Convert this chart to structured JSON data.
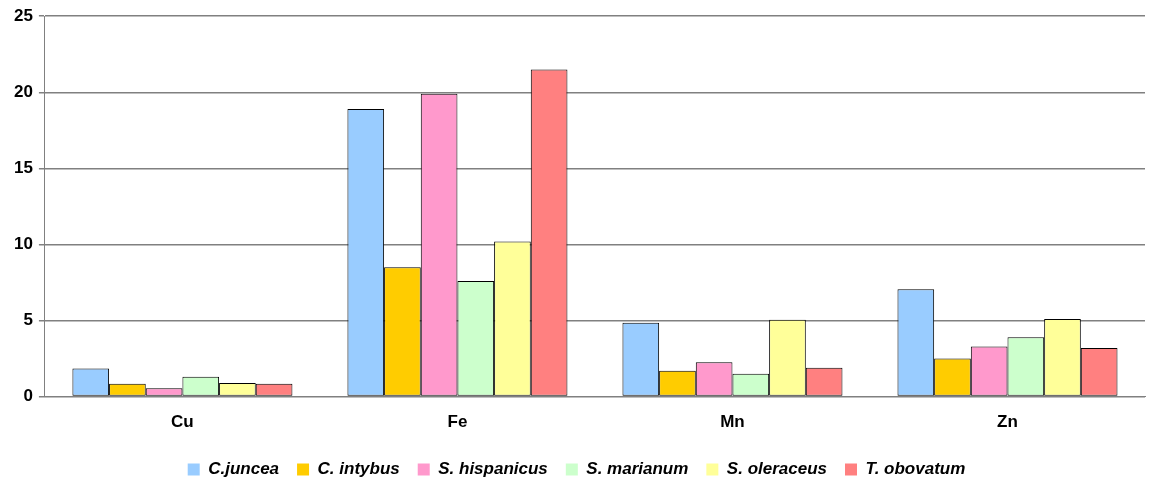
{
  "chart_data": {
    "type": "bar",
    "categories": [
      "Cu",
      "Fe",
      "Mn",
      "Zn"
    ],
    "series": [
      {
        "name": "C.juncea",
        "color": "#99ccff",
        "values": [
          1.85,
          18.9,
          4.85,
          7.05
        ]
      },
      {
        "name": "C. intybus",
        "color": "#ffcc00",
        "values": [
          0.85,
          8.5,
          1.7,
          2.5
        ]
      },
      {
        "name": "S. hispanicus",
        "color": "#ff99cc",
        "values": [
          0.55,
          19.9,
          2.25,
          3.3
        ]
      },
      {
        "name": "S. marianum",
        "color": "#ccffcc",
        "values": [
          1.3,
          7.6,
          1.5,
          3.9
        ]
      },
      {
        "name": "S. oleraceus",
        "color": "#ffff99",
        "values": [
          0.9,
          10.2,
          5.05,
          5.1
        ]
      },
      {
        "name": "T. obovatum",
        "color": "#ff8080",
        "values": [
          0.85,
          21.5,
          1.9,
          3.2
        ]
      }
    ],
    "ylim": [
      0,
      25
    ],
    "yticks": [
      0,
      5,
      10,
      15,
      20,
      25
    ],
    "grid": "y",
    "legend": "bottom"
  }
}
